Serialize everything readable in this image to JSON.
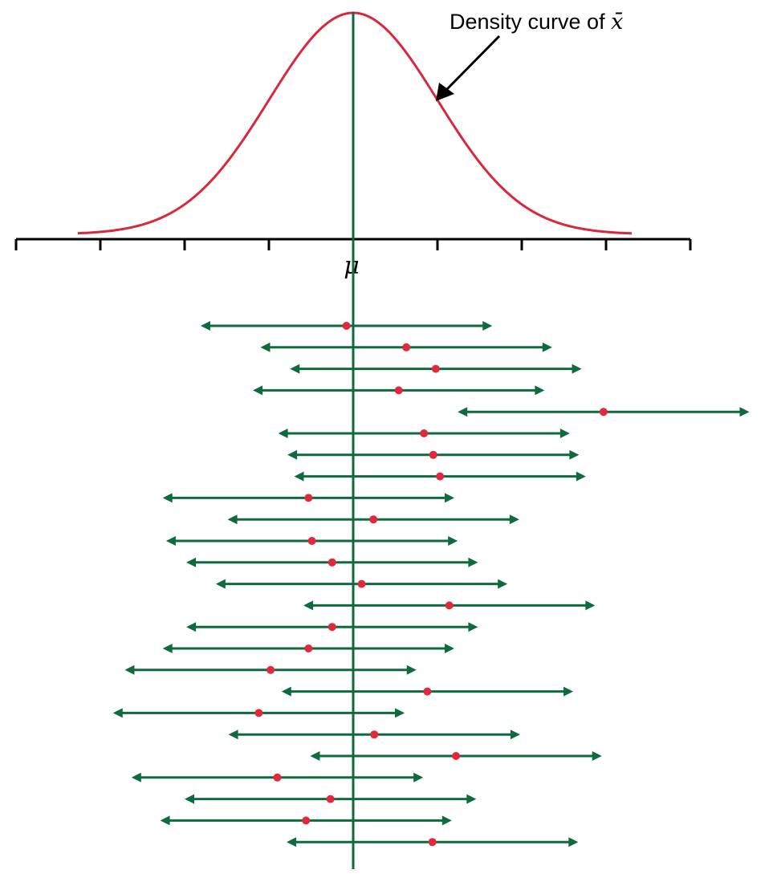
{
  "annotation": {
    "text": "Density curve of ",
    "symbol": "x̄"
  },
  "axis": {
    "center_label": "μ",
    "tick_count": 9
  },
  "colors": {
    "curve": "#d8283c",
    "interval": "#0f6a3e",
    "point": "#e1283c",
    "axis": "#000000",
    "arrow": "#000000"
  },
  "intervals": [
    {
      "center": -0.08
    },
    {
      "center": 0.63
    },
    {
      "center": 0.98
    },
    {
      "center": 0.54
    },
    {
      "center": 2.97
    },
    {
      "center": 0.84
    },
    {
      "center": 0.95
    },
    {
      "center": 1.03
    },
    {
      "center": -0.53
    },
    {
      "center": 0.24
    },
    {
      "center": -0.49
    },
    {
      "center": -0.25
    },
    {
      "center": 0.1
    },
    {
      "center": 1.14
    },
    {
      "center": -0.25
    },
    {
      "center": -0.53
    },
    {
      "center": -0.98
    },
    {
      "center": 0.88
    },
    {
      "center": -1.12
    },
    {
      "center": 0.25
    },
    {
      "center": 1.22
    },
    {
      "center": -0.9
    },
    {
      "center": -0.27
    },
    {
      "center": -0.56
    },
    {
      "center": 0.94
    }
  ],
  "margin_of_error": 1.73
}
